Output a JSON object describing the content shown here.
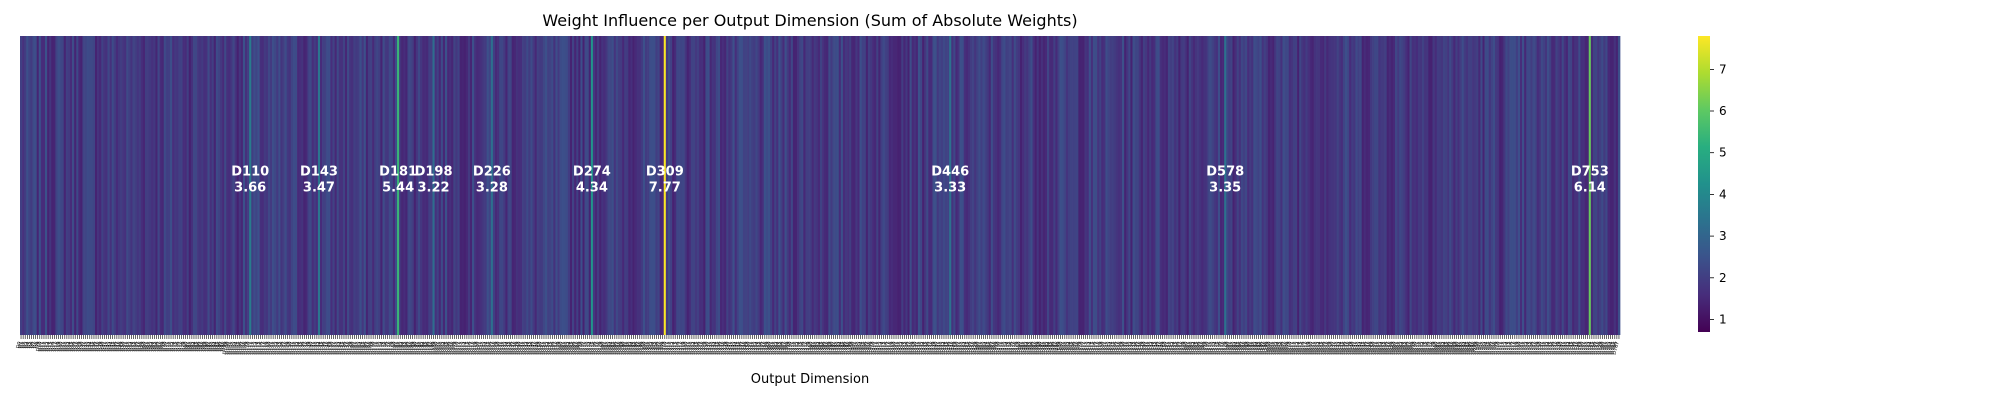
{
  "chart_data": {
    "type": "heatmap",
    "title": "Weight Influence per Output Dimension (Sum of Absolute Weights)",
    "xlabel": "Output Dimension",
    "ylabel": "",
    "n_dimensions": 768,
    "colormap": "viridis",
    "color_range": [
      0.7,
      7.8
    ],
    "colorbar_ticks": [
      1,
      2,
      3,
      4,
      5,
      6,
      7
    ],
    "baseline_value": 1.9,
    "highlighted": [
      {
        "dim": 110,
        "label": "D110",
        "value": 3.66,
        "value_label": "3.66"
      },
      {
        "dim": 143,
        "label": "D143",
        "value": 3.47,
        "value_label": "3.47"
      },
      {
        "dim": 181,
        "label": "D181",
        "value": 5.44,
        "value_label": "5.44"
      },
      {
        "dim": 198,
        "label": "D198",
        "value": 3.22,
        "value_label": "3.22"
      },
      {
        "dim": 226,
        "label": "D226",
        "value": 3.28,
        "value_label": "3.28"
      },
      {
        "dim": 274,
        "label": "D274",
        "value": 4.34,
        "value_label": "4.34"
      },
      {
        "dim": 309,
        "label": "D309",
        "value": 7.77,
        "value_label": "7.77"
      },
      {
        "dim": 446,
        "label": "D446",
        "value": 3.33,
        "value_label": "3.33"
      },
      {
        "dim": 578,
        "label": "D578",
        "value": 3.35,
        "value_label": "3.35"
      },
      {
        "dim": 753,
        "label": "D753",
        "value": 6.14,
        "value_label": "6.14"
      }
    ],
    "legend": "colorbar-right",
    "grid": false
  }
}
